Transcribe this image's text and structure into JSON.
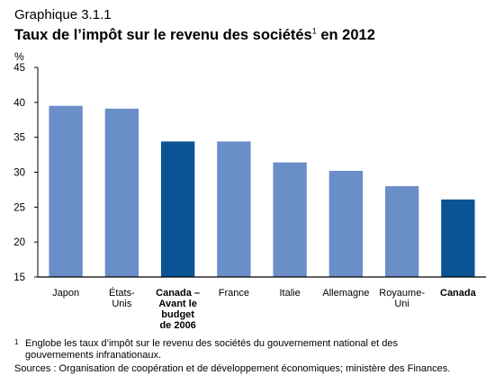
{
  "figure": {
    "caption": "Graphique 3.1.1",
    "title_main": "Taux de l’impôt sur le revenu des sociétés",
    "title_sup": "1",
    "title_end": " en 2012",
    "unit": "%"
  },
  "chart_data": {
    "type": "bar",
    "title": "Taux de l’impôt sur le revenu des sociétés en 2012",
    "ylabel": "%",
    "ylim": [
      15,
      45
    ],
    "yticks": [
      15,
      20,
      25,
      30,
      35,
      40,
      45
    ],
    "grid": false,
    "categories": [
      [
        "Japon"
      ],
      [
        "États-",
        "Unis"
      ],
      [
        "Canada –",
        "Avant le",
        "budget",
        "de 2006"
      ],
      [
        "France"
      ],
      [
        "Italie"
      ],
      [
        "Allemagne"
      ],
      [
        "Royaume-",
        "Uni"
      ],
      [
        "Canada"
      ]
    ],
    "values": [
      39.5,
      39.1,
      34.4,
      34.4,
      31.4,
      30.2,
      28.0,
      26.1
    ],
    "highlighted": [
      false,
      false,
      true,
      false,
      false,
      false,
      false,
      true
    ],
    "colors": {
      "normal": "#6a8ec8",
      "highlight": "#0b5394",
      "axis": "#000000"
    }
  },
  "notes": {
    "footnote_mark": "1",
    "footnote": "Englobe les taux d’impôt sur le revenu des sociétés du gouvernement national et des gouvernements infranationaux.",
    "sources": "Sources : Organisation de coopération et de développement économiques; ministère des Finances."
  }
}
